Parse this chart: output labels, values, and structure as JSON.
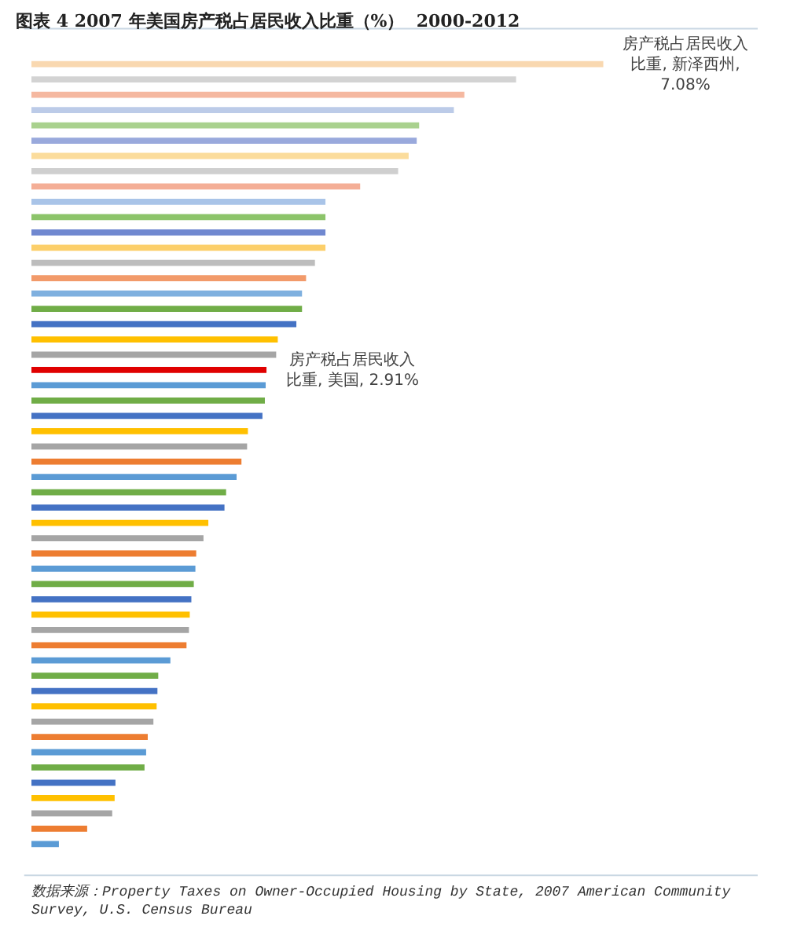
{
  "chart_data": {
    "type": "bar",
    "orientation": "horizontal",
    "title": "图表 4 2007 年美国房产税占居民收入比重（%）  2000-2012",
    "annotations": [
      "数据来源：Property Taxes on Owner-Occupied Housing by State, 2007 American Community Survey, U.S. Census Bureau"
    ],
    "categories": [
      null,
      null,
      null,
      null,
      null,
      null,
      null,
      null,
      null,
      null,
      null,
      null,
      null,
      null,
      null,
      null,
      null,
      null,
      null,
      null,
      null,
      null,
      null,
      null,
      null,
      null,
      null,
      null,
      null,
      null,
      null,
      null,
      null,
      null,
      null,
      null,
      null,
      null,
      null,
      null,
      null,
      null,
      null,
      null,
      null,
      null,
      null,
      null,
      null,
      null,
      null,
      null
    ],
    "values": [
      7.08,
      6.0,
      5.36,
      5.23,
      4.8,
      4.77,
      4.67,
      4.54,
      4.07,
      3.64,
      3.64,
      3.64,
      3.64,
      3.51,
      3.4,
      3.35,
      3.35,
      3.28,
      3.05,
      3.03,
      2.91,
      2.9,
      2.89,
      2.86,
      2.68,
      2.67,
      2.6,
      2.54,
      2.41,
      2.39,
      2.19,
      2.13,
      2.04,
      2.03,
      2.01,
      1.98,
      1.96,
      1.95,
      1.92,
      1.72,
      1.57,
      1.56,
      1.55,
      1.51,
      1.44,
      1.42,
      1.4,
      1.04,
      1.03,
      1.0,
      0.69,
      0.34
    ],
    "colors": [
      "#f9d8b0",
      "#d3d3d3",
      "#f5b8a0",
      "#bccbe8",
      "#a9d18e",
      "#99a9dc",
      "#fbdc9c",
      "#cfcfcf",
      "#f4ae96",
      "#a9c4e8",
      "#8cc46a",
      "#7088d0",
      "#fccf6a",
      "#bdbdbd",
      "#f29a6a",
      "#7fb0df",
      "#70ad47",
      "#4472c4",
      "#ffc000",
      "#a5a5a5",
      "#e00000",
      "#5b9bd5",
      "#70ad47",
      "#4472c4",
      "#ffc000",
      "#a5a5a5",
      "#ed7d31",
      "#5b9bd5",
      "#70ad47",
      "#4472c4",
      "#ffc000",
      "#a5a5a5",
      "#ed7d31",
      "#5b9bd5",
      "#70ad47",
      "#4472c4",
      "#ffc000",
      "#a5a5a5",
      "#ed7d31",
      "#5b9bd5",
      "#70ad47",
      "#4472c4",
      "#ffc000",
      "#a5a5a5",
      "#ed7d31",
      "#5b9bd5",
      "#70ad47",
      "#4472c4",
      "#ffc000",
      "#a5a5a5",
      "#ed7d31",
      "#5b9bd5"
    ],
    "value_labels": [
      "房产税占居民收入比重, 新泽西州, 7.08%",
      null,
      null,
      null,
      null,
      null,
      null,
      null,
      null,
      null,
      null,
      null,
      null,
      null,
      null,
      null,
      null,
      null,
      null,
      null,
      "房产税占居民收入比重, 美国, 2.91%",
      null,
      null,
      null,
      null,
      null,
      null,
      null,
      null,
      null,
      null,
      null,
      null,
      null,
      null,
      null,
      null,
      null,
      null,
      null,
      null,
      null,
      null,
      null,
      null,
      null,
      null,
      null,
      null,
      null,
      null,
      null
    ],
    "grid": false
  }
}
